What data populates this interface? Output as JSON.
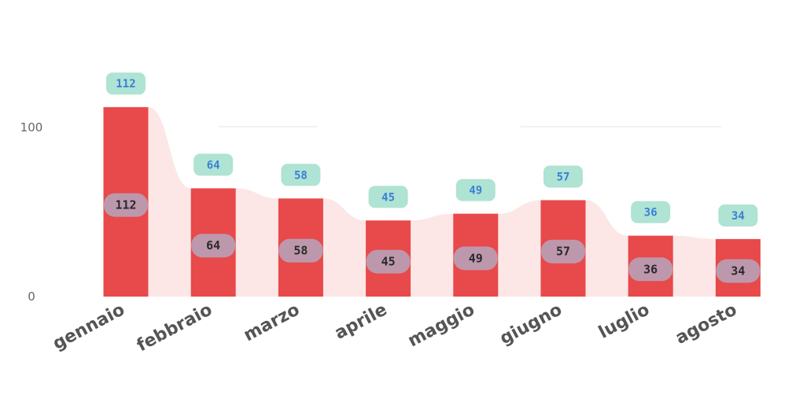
{
  "chart_data": {
    "type": "bar",
    "categories": [
      "gennaio",
      "febbraio",
      "marzo",
      "aprile",
      "maggio",
      "giugno",
      "luglio",
      "agosto"
    ],
    "values": [
      112,
      64,
      58,
      45,
      49,
      57,
      36,
      34
    ],
    "yticks": [
      0,
      100
    ],
    "ylim": [
      0,
      130
    ],
    "xlabel": "",
    "ylabel": "",
    "title": "",
    "grid": false,
    "data_labels": "inside bar and above bar",
    "colors": {
      "bar": "#e8494a",
      "area": "#fbe0e0",
      "inside_label_bg": "#b8a0b4",
      "inside_label_text": "#2a2a2a",
      "top_label_bg": "#a6e0cf",
      "top_label_text": "#3a7fd6",
      "axis_text": "#666666",
      "category_text": "#555555"
    }
  }
}
